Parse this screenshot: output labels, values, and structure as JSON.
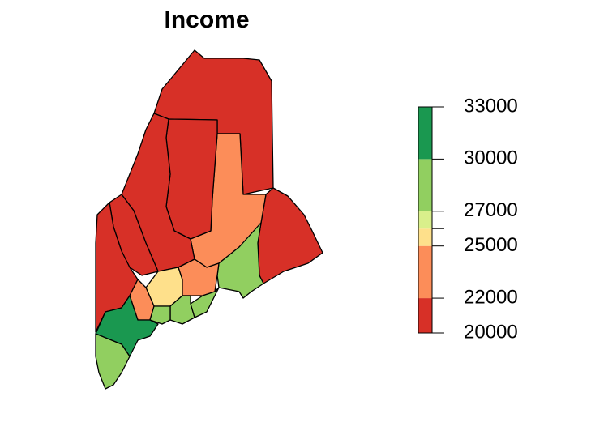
{
  "chart_data": {
    "type": "choropleth",
    "title": "Income",
    "ylim": [
      20000,
      33000
    ],
    "yticks": [
      20000,
      22000,
      25000,
      {
        "value": 26000,
        "label": null
      },
      27000,
      30000,
      33000
    ],
    "colors": [
      "#d73027",
      "#fc8d59",
      "#fee08b",
      "#d9ef8b",
      "#91cf60",
      "#1a9850"
    ],
    "regions": [
      {
        "color": "#d73027"
      },
      {
        "color": "#d73027"
      },
      {
        "color": "#fc8d59"
      },
      {
        "color": "#91cf60"
      },
      {
        "color": "#d73027"
      },
      {
        "color": "#d73027"
      },
      {
        "color": "#d73027"
      },
      {
        "color": "#d73027"
      },
      {
        "color": "#fee08b"
      },
      {
        "color": "#fc8d59"
      },
      {
        "color": "#91cf60"
      },
      {
        "color": "#91cf60"
      },
      {
        "color": "#fc8d59"
      },
      {
        "color": "#91cf60"
      },
      {
        "color": "#1a9850"
      },
      {
        "color": "#91cf60"
      }
    ]
  }
}
